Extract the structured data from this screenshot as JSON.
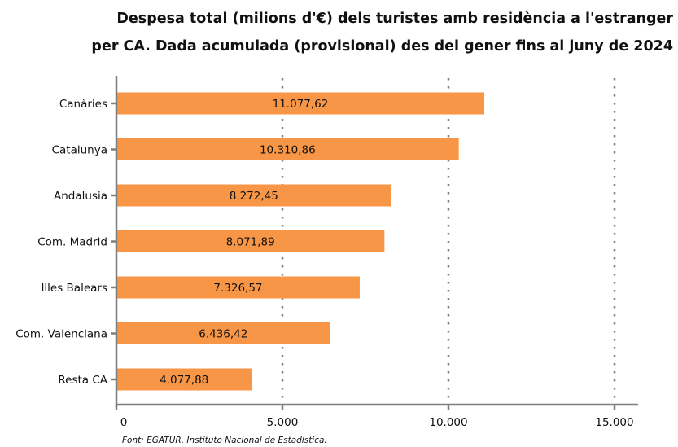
{
  "chart_data": {
    "type": "bar",
    "orientation": "horizontal",
    "title_lines": [
      "Despesa total (milions d'€) dels turistes amb residència a l'estranger",
      "per CA. Dada acumulada (provisional) des del gener fins al juny de 2024"
    ],
    "categories": [
      "Canàries",
      "Catalunya",
      "Andalusia",
      "Com. Madrid",
      "Illes Balears",
      "Com. Valenciana",
      "Resta CA"
    ],
    "values": [
      11077.62,
      10310.86,
      8272.45,
      8071.89,
      7326.57,
      6436.42,
      4077.88
    ],
    "value_labels": [
      "11.077,62",
      "10.310,86",
      "8.272,45",
      "8.071,89",
      "7.326,57",
      "6.436,42",
      "4.077,88"
    ],
    "x_ticks": [
      0,
      5000,
      10000,
      15000
    ],
    "x_tick_labels": [
      "0",
      "5.000",
      "10.000",
      "15.000"
    ],
    "xlim": [
      0,
      15000
    ],
    "grid": "vertical dotted",
    "legend": "none",
    "bar_color": "#F79646",
    "grid_color": "#7F7F7F",
    "axis_color": "#7F7F7F",
    "source": "Font: EGATUR. Instituto Nacional de Estadística."
  }
}
